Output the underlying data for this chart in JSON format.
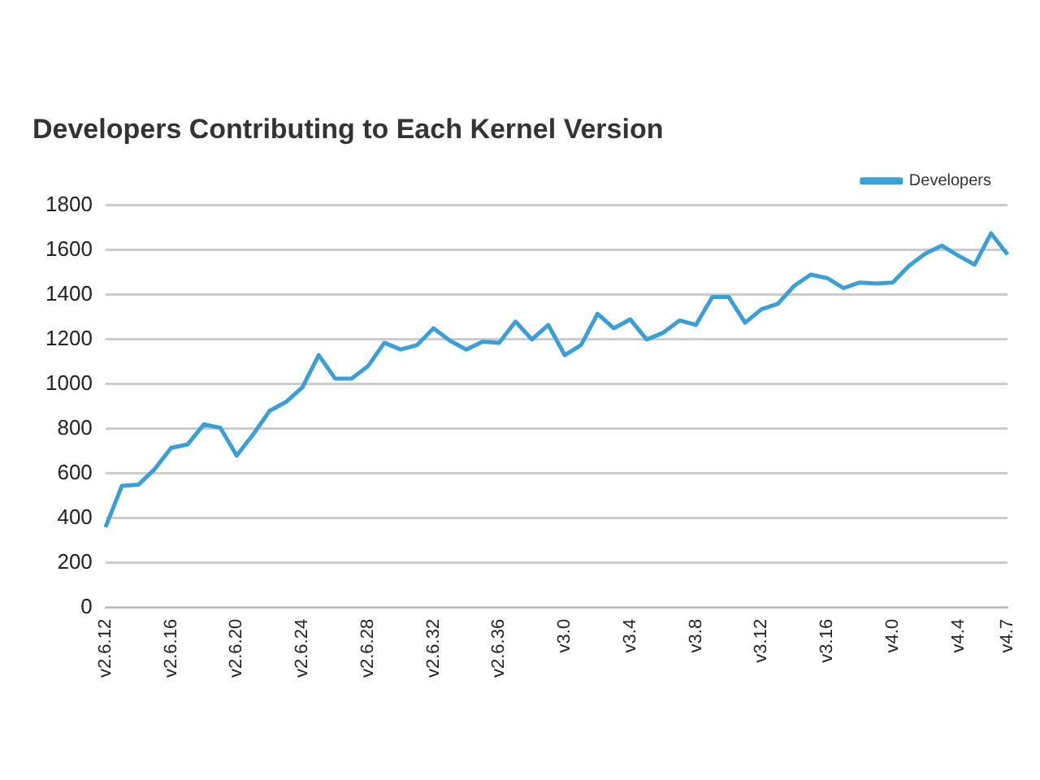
{
  "chart_data": {
    "type": "line",
    "title": "Developers Contributing to Each Kernel Version",
    "categories": [
      "v2.6.12",
      null,
      null,
      null,
      "v2.6.16",
      null,
      null,
      null,
      "v2.6.20",
      null,
      null,
      null,
      "v2.6.24",
      null,
      null,
      null,
      "v2.6.28",
      null,
      null,
      null,
      "v2.6.32",
      null,
      null,
      null,
      "v2.6.36",
      null,
      null,
      null,
      "v3.0",
      null,
      null,
      null,
      "v3.4",
      null,
      null,
      null,
      "v3.8",
      null,
      null,
      null,
      "v3.12",
      null,
      null,
      null,
      "v3.16",
      null,
      null,
      null,
      "v4.0",
      null,
      null,
      null,
      "v4.4",
      null,
      null,
      "v4.7"
    ],
    "series": [
      {
        "name": "Developers",
        "color": "#3a9fd6",
        "values": [
          360,
          545,
          550,
          620,
          715,
          730,
          820,
          805,
          680,
          775,
          880,
          920,
          985,
          1130,
          1025,
          1025,
          1080,
          1185,
          1155,
          1175,
          1250,
          1195,
          1155,
          1190,
          1185,
          1280,
          1200,
          1265,
          1130,
          1175,
          1315,
          1250,
          1290,
          1200,
          1230,
          1285,
          1265,
          1390,
          1390,
          1275,
          1335,
          1360,
          1440,
          1490,
          1475,
          1430,
          1455,
          1450,
          1455,
          1530,
          1585,
          1620,
          1575,
          1535,
          1675,
          1580
        ]
      }
    ],
    "ylim": [
      0,
      1800
    ],
    "yticks": [
      0,
      200,
      400,
      600,
      800,
      1000,
      1200,
      1400,
      1600,
      1800
    ],
    "grid": "y",
    "legend": "top right",
    "marker": "none"
  }
}
